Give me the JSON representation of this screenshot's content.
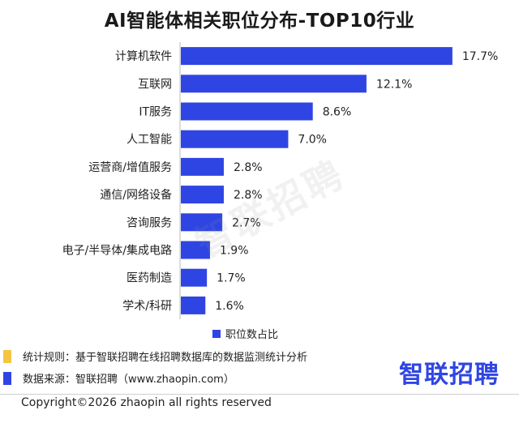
{
  "chart_data": {
    "type": "bar",
    "orientation": "horizontal",
    "title": "AI智能体相关职位分布-TOP10行业",
    "categories": [
      "计算机软件",
      "互联网",
      "IT服务",
      "人工智能",
      "运营商/增值服务",
      "通信/网络设备",
      "咨询服务",
      "电子/半导体/集成电路",
      "医药制造",
      "学术/科研"
    ],
    "values": [
      17.7,
      12.1,
      8.6,
      7.0,
      2.8,
      2.8,
      2.7,
      1.9,
      1.7,
      1.6
    ],
    "value_labels": [
      "17.7%",
      "12.1%",
      "8.6%",
      "7.0%",
      "2.8%",
      "2.8%",
      "2.7%",
      "1.9%",
      "1.7%",
      "1.6%"
    ],
    "series": [
      {
        "name": "职位数占比",
        "values": [
          17.7,
          12.1,
          8.6,
          7.0,
          2.8,
          2.8,
          2.7,
          1.9,
          1.7,
          1.6
        ]
      }
    ],
    "xlim": [
      0,
      18.5
    ],
    "grid": false,
    "legend_position": "bottom",
    "bar_color": "#2f45e3"
  },
  "watermark": "智联招聘",
  "notes": [
    {
      "text": "统计规则：基于智联招聘在线招聘数据库的数据监测统计分析",
      "marker_color": "#f5c542"
    },
    {
      "text": "数据来源：智联招聘（www.zhaopin.com）",
      "marker_color": "#2f45e3"
    }
  ],
  "brand": {
    "text": "智联招聘",
    "color": "#2f45e3"
  },
  "copyright": "Copyright©2026 zhaopin all rights reserved"
}
